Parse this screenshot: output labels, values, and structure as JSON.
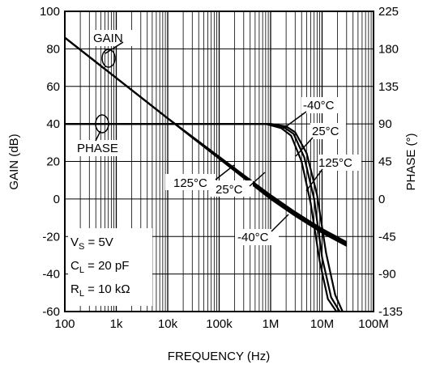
{
  "chart_data": {
    "type": "line",
    "xlabel": "FREQUENCY (Hz)",
    "ylabel": "GAIN (dB)",
    "y2label": "PHASE (°)",
    "x_scale": "log",
    "xlim": [
      100,
      100000000
    ],
    "ylim": [
      -60,
      100
    ],
    "y2lim": [
      -135,
      225
    ],
    "grid": true,
    "x_ticks": [
      "100",
      "1k",
      "10k",
      "100k",
      "1M",
      "10M",
      "100M"
    ],
    "y_ticks": [
      "100",
      "80",
      "60",
      "40",
      "20",
      "0",
      "-20",
      "-40",
      "-60"
    ],
    "y2_ticks": [
      "225",
      "180",
      "135",
      "90",
      "45",
      "0",
      "-45",
      "-90",
      "-135"
    ],
    "gain_label": "GAIN",
    "phase_label": "PHASE",
    "conditions": {
      "vs_main": "V",
      "vs_sub": "S",
      "vs_val": " = 5V",
      "cl_main": "C",
      "cl_sub": "L",
      "cl_val": " = 20 pF",
      "rl_main": "R",
      "rl_sub": "L",
      "rl_val": " = 10 kΩ"
    },
    "series": [
      {
        "name": "GAIN -40°C",
        "axis": "left",
        "x": [
          100,
          10000,
          1000000,
          3000000,
          10000000,
          30000000
        ],
        "y": [
          86,
          43,
          0,
          -9,
          -18,
          -25
        ]
      },
      {
        "name": "GAIN 25°C",
        "axis": "left",
        "x": [
          100,
          10000,
          1000000,
          3000000,
          10000000,
          30000000
        ],
        "y": [
          86,
          43,
          1,
          -8,
          -17,
          -24
        ]
      },
      {
        "name": "GAIN 125°C",
        "axis": "left",
        "x": [
          100,
          10000,
          1000000,
          3000000,
          10000000,
          30000000
        ],
        "y": [
          86,
          43,
          2,
          -7,
          -16,
          -23
        ]
      },
      {
        "name": "PHASE -40°C",
        "axis": "right",
        "x": [
          100,
          100000,
          1000000,
          2000000,
          3000000,
          5000000,
          8000000,
          12000000,
          18000000,
          25000000
        ],
        "y": [
          90,
          90,
          90,
          87,
          80,
          55,
          5,
          -65,
          -115,
          -135
        ]
      },
      {
        "name": "PHASE 25°C",
        "axis": "right",
        "x": [
          100,
          100000,
          900000,
          1800000,
          2800000,
          4500000,
          7000000,
          10000000,
          15000000,
          22000000
        ],
        "y": [
          90,
          90,
          90,
          86,
          78,
          50,
          0,
          -70,
          -118,
          -135
        ]
      },
      {
        "name": "PHASE 125°C",
        "axis": "right",
        "x": [
          100,
          100000,
          800000,
          1600000,
          2500000,
          4000000,
          6000000,
          9000000,
          13000000,
          19000000
        ],
        "y": [
          90,
          90,
          90,
          85,
          76,
          45,
          -5,
          -75,
          -120,
          -135
        ]
      }
    ],
    "annotations": [
      "-40°C",
      "25°C",
      "125°C",
      "125°C",
      "25°C",
      "-40°C"
    ]
  }
}
